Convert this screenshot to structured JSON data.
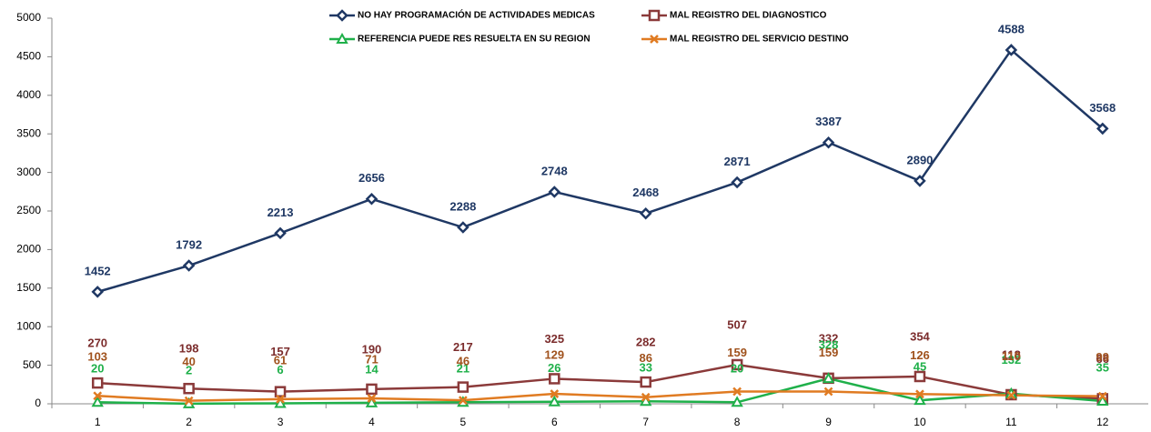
{
  "chart_data": {
    "type": "line",
    "categories": [
      "1",
      "2",
      "3",
      "4",
      "5",
      "6",
      "7",
      "8",
      "9",
      "10",
      "11",
      "12"
    ],
    "series": [
      {
        "name": "NO HAY PROGRAMACIÓN DE ACTIVIDADES MEDICAS",
        "color": "#1f3864",
        "marker": "diamond",
        "values": [
          1452,
          1792,
          2213,
          2656,
          2288,
          2748,
          2468,
          2871,
          3387,
          2890,
          4588,
          3568
        ]
      },
      {
        "name": "MAL REGISTRO DEL DIAGNOSTICO",
        "color": "#8b3a3a",
        "marker": "square",
        "values": [
          270,
          198,
          157,
          190,
          217,
          325,
          282,
          507,
          332,
          354,
          118,
          66
        ]
      },
      {
        "name": "REFERENCIA PUEDE RES RESUELTA EN SU REGION",
        "color": "#1fb04a",
        "marker": "triangle",
        "values": [
          20,
          2,
          6,
          14,
          21,
          26,
          33,
          20,
          328,
          45,
          132,
          35
        ]
      },
      {
        "name": "MAL REGISTRO DEL SERVICIO DESTINO",
        "color": "#e07b22",
        "marker": "x",
        "values": [
          103,
          40,
          61,
          71,
          46,
          129,
          86,
          159,
          159,
          126,
          110,
          99
        ]
      }
    ],
    "ylim": [
      0,
      5000
    ],
    "yticks": [
      0,
      500,
      1000,
      1500,
      2000,
      2500,
      3000,
      3500,
      4000,
      4500,
      5000
    ],
    "grid": false
  }
}
